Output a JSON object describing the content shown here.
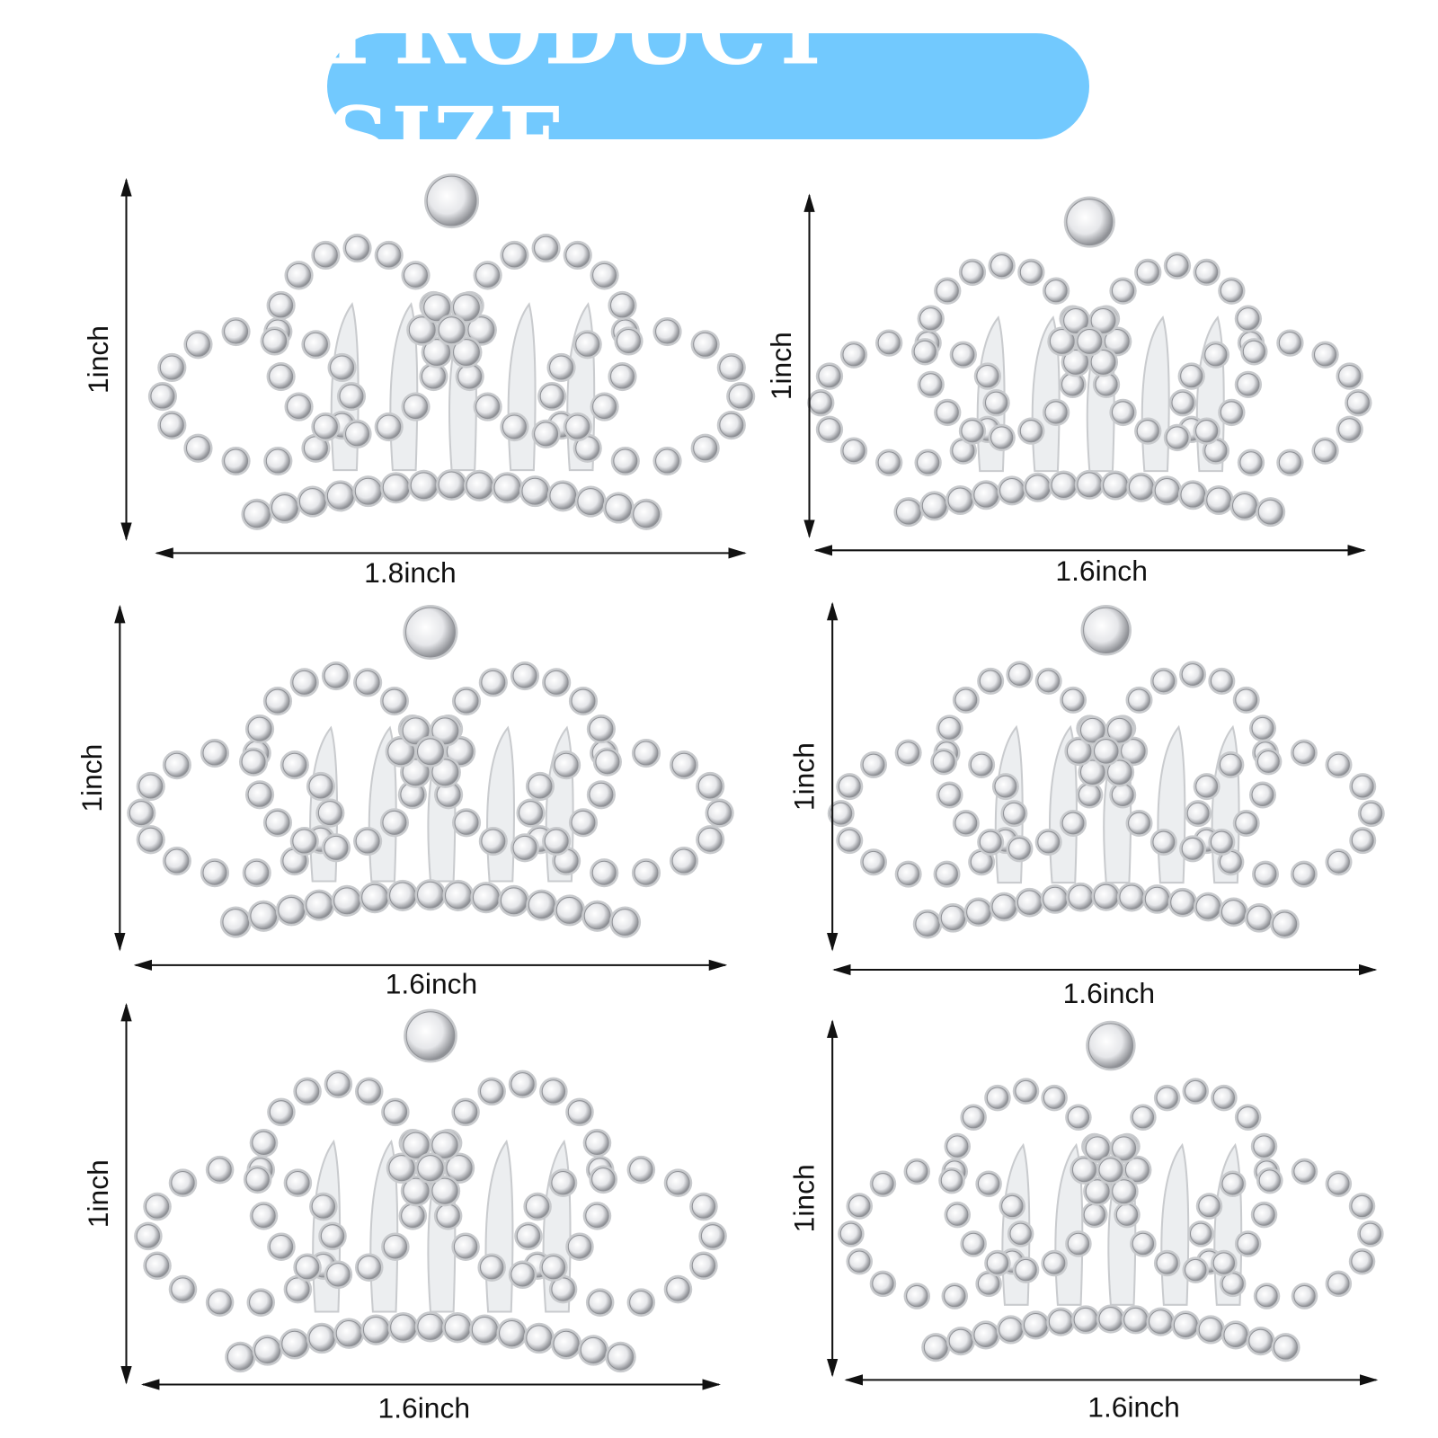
{
  "title": {
    "text": "PRODUCT SIZE",
    "background_color": "#72c9fe",
    "text_color": "#ffffff"
  },
  "colors": {
    "arrow": "#111111",
    "metal": "#d9dadc",
    "gem": "#f4f4f6",
    "gem_edge": "#9a9ca0"
  },
  "products": [
    {
      "height_label": "1inch",
      "width_label": "1.8inch"
    },
    {
      "height_label": "1inch",
      "width_label": "1.6inch"
    },
    {
      "height_label": "1inch",
      "width_label": "1.6inch"
    },
    {
      "height_label": "1inch",
      "width_label": "1.6inch"
    },
    {
      "height_label": "1inch",
      "width_label": "1.6inch"
    },
    {
      "height_label": "1inch",
      "width_label": "1.6inch"
    }
  ]
}
